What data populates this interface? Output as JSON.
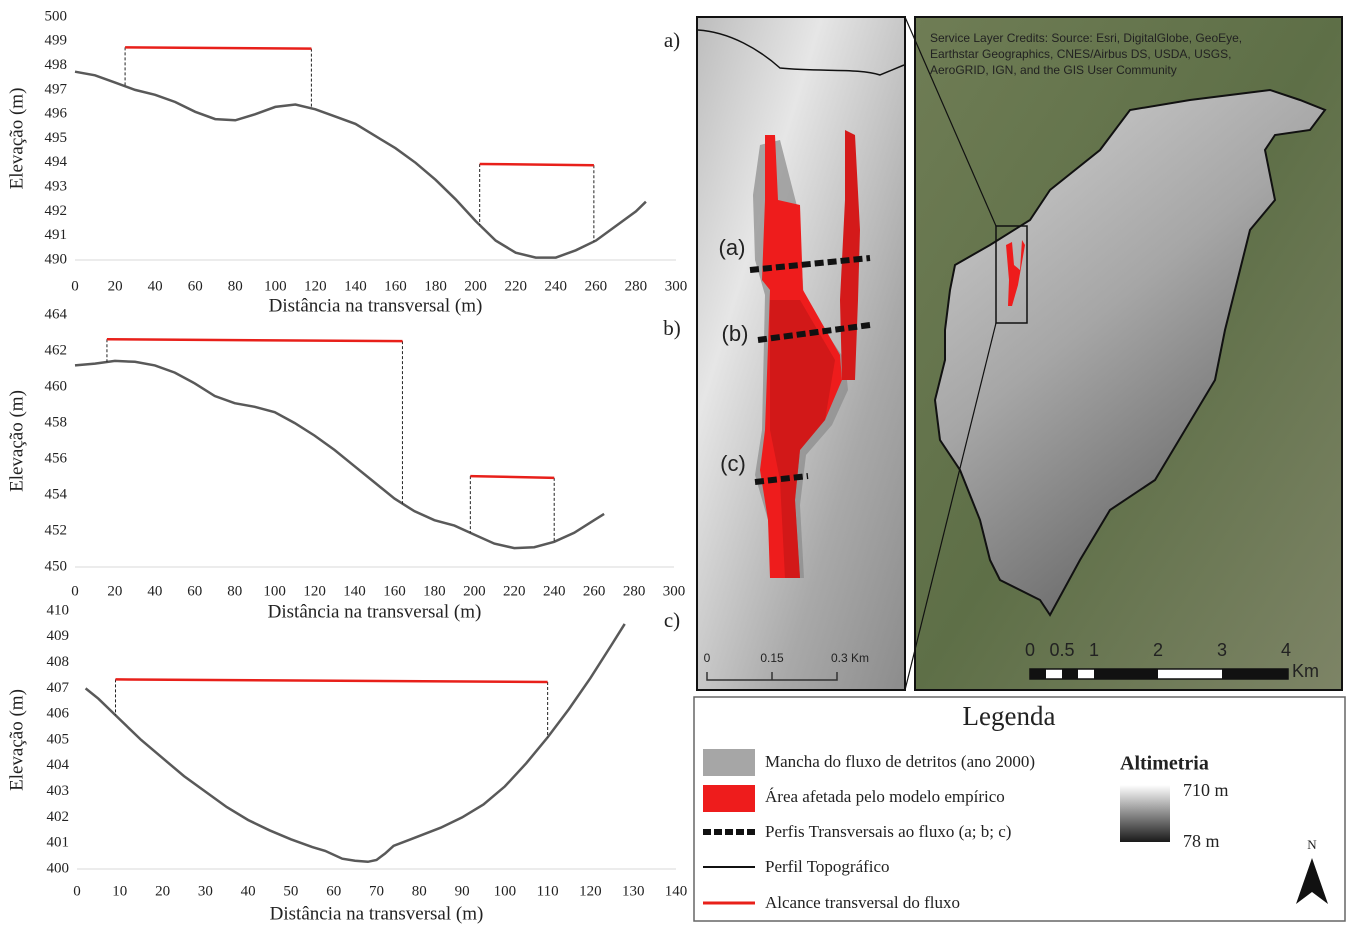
{
  "chart_data": [
    {
      "type": "line",
      "panel_label": "a)",
      "x_label": "Distância na transversal (m)",
      "y_label": "Elevação (m)",
      "xlim": [
        0,
        300
      ],
      "xticks": [
        0,
        20,
        40,
        60,
        80,
        100,
        120,
        140,
        160,
        180,
        200,
        220,
        240,
        260,
        280,
        300
      ],
      "ylim": [
        490,
        500
      ],
      "yticks": [
        490,
        491,
        492,
        493,
        494,
        495,
        496,
        497,
        498,
        499,
        500
      ],
      "series": [
        {
          "name": "Perfil Topográfico",
          "color": "#595959",
          "x": [
            0,
            10,
            20,
            30,
            40,
            50,
            60,
            70,
            80,
            90,
            100,
            110,
            120,
            130,
            140,
            150,
            160,
            170,
            180,
            190,
            200,
            210,
            220,
            230,
            240,
            250,
            260,
            270,
            280,
            285
          ],
          "values": [
            497.75,
            497.6,
            497.3,
            497.0,
            496.8,
            496.5,
            496.1,
            495.8,
            495.75,
            496.0,
            496.3,
            496.4,
            496.2,
            495.9,
            495.6,
            495.1,
            494.6,
            494.0,
            493.3,
            492.5,
            491.6,
            490.8,
            490.3,
            490.1,
            490.1,
            490.4,
            490.8,
            491.4,
            492.0,
            492.4
          ]
        },
        {
          "name": "Alcance transversal do fluxo",
          "color": "#e8201a",
          "x": [
            25,
            118
          ],
          "values": [
            498.75,
            498.7
          ]
        },
        {
          "color": "#e8201a",
          "x": [
            202,
            259
          ],
          "values": [
            493.95,
            493.9
          ]
        }
      ]
    },
    {
      "type": "line",
      "panel_label": "b)",
      "x_label": "Distância na transversal (m)",
      "y_label": "Elevação (m)",
      "xlim": [
        0,
        300
      ],
      "xticks": [
        0,
        20,
        40,
        60,
        80,
        100,
        120,
        140,
        160,
        180,
        200,
        220,
        240,
        260,
        280,
        300
      ],
      "ylim": [
        450,
        464
      ],
      "yticks": [
        450,
        452,
        454,
        456,
        458,
        460,
        462,
        464
      ],
      "series": [
        {
          "color": "#595959",
          "x": [
            0,
            10,
            20,
            30,
            40,
            50,
            60,
            70,
            80,
            90,
            100,
            110,
            120,
            130,
            140,
            150,
            160,
            170,
            180,
            190,
            200,
            210,
            220,
            230,
            240,
            250,
            260,
            265
          ],
          "values": [
            461.2,
            461.3,
            461.45,
            461.4,
            461.2,
            460.8,
            460.2,
            459.5,
            459.1,
            458.9,
            458.6,
            458.0,
            457.3,
            456.5,
            455.6,
            454.7,
            453.8,
            453.1,
            452.6,
            452.3,
            451.8,
            451.3,
            451.05,
            451.1,
            451.4,
            451.9,
            452.6,
            452.95
          ]
        },
        {
          "color": "#e8201a",
          "x": [
            16,
            164
          ],
          "values": [
            462.65,
            462.55
          ]
        },
        {
          "color": "#e8201a",
          "x": [
            198,
            240
          ],
          "values": [
            455.05,
            454.95
          ]
        }
      ]
    },
    {
      "type": "line",
      "panel_label": "c)",
      "x_label": "Distância na transversal (m)",
      "y_label": "Elevação (m)",
      "xlim": [
        0,
        140
      ],
      "xticks": [
        0,
        10,
        20,
        30,
        40,
        50,
        60,
        70,
        80,
        90,
        100,
        110,
        120,
        130,
        140
      ],
      "ylim": [
        400,
        410
      ],
      "yticks": [
        400,
        401,
        402,
        403,
        404,
        405,
        406,
        407,
        408,
        409,
        410
      ],
      "series": [
        {
          "color": "#595959",
          "x": [
            2,
            5,
            10,
            15,
            20,
            25,
            30,
            35,
            40,
            45,
            50,
            55,
            58,
            62,
            65,
            68,
            70,
            72,
            74,
            78,
            85,
            90,
            95,
            100,
            105,
            110,
            115,
            120,
            125,
            128
          ],
          "values": [
            407.0,
            406.6,
            405.8,
            405.0,
            404.3,
            403.6,
            403.0,
            402.4,
            401.9,
            401.5,
            401.15,
            400.85,
            400.7,
            400.4,
            400.32,
            400.28,
            400.35,
            400.6,
            400.9,
            401.15,
            401.6,
            402.0,
            402.5,
            403.2,
            404.1,
            405.1,
            406.2,
            407.4,
            408.7,
            409.5
          ]
        },
        {
          "color": "#e8201a",
          "x": [
            9,
            110
          ],
          "values": [
            407.35,
            407.25
          ]
        }
      ]
    }
  ],
  "map": {
    "inset_labels": [
      "(a)",
      "(b)",
      "(c)"
    ],
    "inset_scale": [
      "0",
      "0.15",
      "0.3 Km"
    ],
    "credits": [
      "Service Layer Credits:  Source: Esri, DigitalGlobe, GeoEye,",
      "Earthstar Geographics, CNES/Airbus DS, USDA, USGS,",
      "AeroGRID, IGN, and the GIS User Community"
    ],
    "scale": [
      "0",
      "0.5",
      "1",
      "2",
      "3",
      "4"
    ],
    "scale_unit": "Km"
  },
  "legend": {
    "title": "Legenda",
    "items": [
      "Mancha do fluxo de detritos (ano 2000)",
      "Área afetada pelo modelo empírico",
      "Perfis Transversais ao fluxo (a; b; c)"
    ],
    "altimetry_title": "Altimetria",
    "altimetry_max": "710 m",
    "altimetry_min": "78 m",
    "north": "N"
  }
}
